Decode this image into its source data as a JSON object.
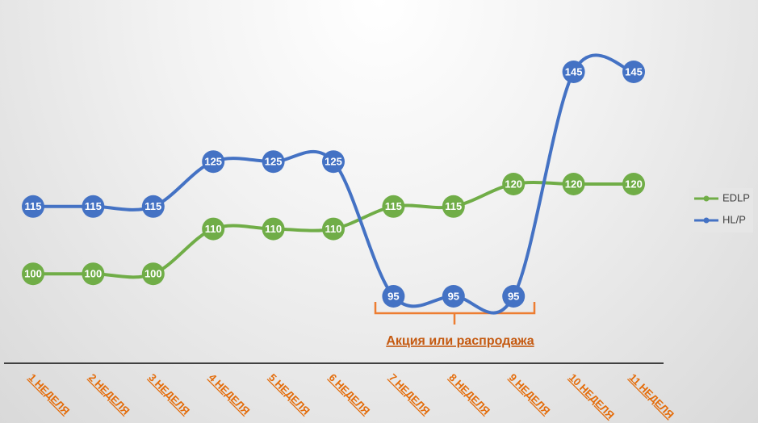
{
  "chart_data": {
    "type": "line",
    "categories": [
      "1 НЕДЕЛЯ",
      "2 НЕДЕЛЯ",
      "3 НЕДЕЛЯ",
      "4 НЕДЕЛЯ",
      "5 НЕДЕЛЯ",
      "6 НЕДЕЛЯ",
      "7 НЕДЕЛЯ",
      "8 НЕДЕЛЯ",
      "9 НЕДЕЛЯ",
      "10 НЕДЕЛЯ",
      "11 НЕДЕЛЯ"
    ],
    "series": [
      {
        "name": "EDLP",
        "color": "#70ad47",
        "values": [
          100,
          100,
          100,
          110,
          110,
          110,
          115,
          115,
          120,
          120,
          120
        ]
      },
      {
        "name": "HL/P",
        "color": "#4472c4",
        "values": [
          115,
          115,
          115,
          125,
          125,
          125,
          95,
          95,
          95,
          145,
          145
        ]
      }
    ],
    "annotation": "Акция или распродажа",
    "legend": "right"
  }
}
